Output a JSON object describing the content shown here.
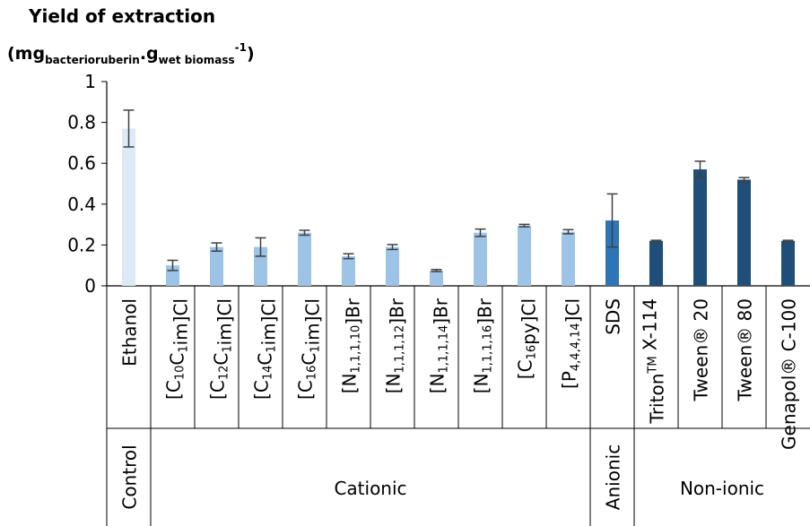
{
  "chart_data": {
    "type": "bar",
    "title": "Yield of extraction",
    "ylabel": "(mg_bacterioruberin.g_wet biomass^-1)",
    "ylabel_parts": {
      "open": "(mg",
      "sub1": "bacterioruberin",
      "dot": ".g",
      "sub2": "wet biomass",
      "sup": "-1",
      "close": ")"
    },
    "ylim": [
      0,
      1
    ],
    "yticks": [
      {
        "value": 0,
        "label": "0"
      },
      {
        "value": 0.2,
        "label": "0.2"
      },
      {
        "value": 0.4,
        "label": "0.4"
      },
      {
        "value": 0.6,
        "label": "0.6"
      },
      {
        "value": 0.8,
        "label": "0.8"
      },
      {
        "value": 1,
        "label": "1"
      }
    ],
    "categories": [
      {
        "label": "Ethanol",
        "main": "Ethanol",
        "value": 0.77,
        "err": 0.09,
        "color": "#dce9f6"
      },
      {
        "label": "[C10C1im]Cl",
        "parts": [
          [
            "[C",
            ""
          ],
          [
            "10",
            "sub"
          ],
          [
            "C",
            ""
          ],
          [
            "1",
            "sub"
          ],
          [
            "im]Cl",
            ""
          ]
        ],
        "value": 0.1,
        "err": 0.025,
        "color": "#9dc3e6"
      },
      {
        "label": "[C12C1im]Cl",
        "parts": [
          [
            "[C",
            ""
          ],
          [
            "12",
            "sub"
          ],
          [
            "C",
            ""
          ],
          [
            "1",
            "sub"
          ],
          [
            "im]Cl",
            ""
          ]
        ],
        "value": 0.19,
        "err": 0.02,
        "color": "#9dc3e6"
      },
      {
        "label": "[C14C1im]Cl",
        "parts": [
          [
            "[C",
            ""
          ],
          [
            "14",
            "sub"
          ],
          [
            "C",
            ""
          ],
          [
            "1",
            "sub"
          ],
          [
            "im]Cl",
            ""
          ]
        ],
        "value": 0.19,
        "err": 0.045,
        "color": "#9dc3e6"
      },
      {
        "label": "[C16C1im]Cl",
        "parts": [
          [
            "[C",
            ""
          ],
          [
            "16",
            "sub"
          ],
          [
            "C",
            ""
          ],
          [
            "1",
            "sub"
          ],
          [
            "im]Cl",
            ""
          ]
        ],
        "value": 0.26,
        "err": 0.012,
        "color": "#9dc3e6"
      },
      {
        "label": "[N1,1,1,10]Br",
        "parts": [
          [
            "[N",
            ""
          ],
          [
            "1,1,1,10",
            "sub"
          ],
          [
            "]Br",
            ""
          ]
        ],
        "value": 0.145,
        "err": 0.012,
        "color": "#9dc3e6"
      },
      {
        "label": "[N1,1,1,12]Br",
        "parts": [
          [
            "[N",
            ""
          ],
          [
            "1,1,1,12",
            "sub"
          ],
          [
            "]Br",
            ""
          ]
        ],
        "value": 0.19,
        "err": 0.012,
        "color": "#9dc3e6"
      },
      {
        "label": "[N1,1,1,14]Br",
        "parts": [
          [
            "[N",
            ""
          ],
          [
            "1,1,1,14",
            "sub"
          ],
          [
            "]Br",
            ""
          ]
        ],
        "value": 0.075,
        "err": 0.005,
        "color": "#9dc3e6"
      },
      {
        "label": "[N1,1,1,16]Br",
        "parts": [
          [
            "[N",
            ""
          ],
          [
            "1,1,1,16",
            "sub"
          ],
          [
            "]Br",
            ""
          ]
        ],
        "value": 0.26,
        "err": 0.018,
        "color": "#9dc3e6"
      },
      {
        "label": "[C16py]Cl",
        "parts": [
          [
            "[C",
            ""
          ],
          [
            "16",
            "sub"
          ],
          [
            "py]Cl",
            ""
          ]
        ],
        "value": 0.295,
        "err": 0.006,
        "color": "#9dc3e6"
      },
      {
        "label": "[P4,4,4,14]Cl",
        "parts": [
          [
            "[P",
            ""
          ],
          [
            "4,4,4,14",
            "sub"
          ],
          [
            "]Cl",
            ""
          ]
        ],
        "value": 0.265,
        "err": 0.01,
        "color": "#9dc3e6"
      },
      {
        "label": "SDS",
        "main": "SDS",
        "value": 0.32,
        "err": 0.13,
        "color": "#2e75b6"
      },
      {
        "label": "TritonTM X-114",
        "parts": [
          [
            "Triton",
            ""
          ],
          [
            "TM",
            "sup"
          ],
          [
            " X-114",
            ""
          ]
        ],
        "value": 0.22,
        "err": 0.003,
        "color": "#1f4e79"
      },
      {
        "label": "Tween® 20",
        "main": "Tween® 20",
        "value": 0.57,
        "err": 0.04,
        "color": "#1f4e79"
      },
      {
        "label": "Tween® 80",
        "main": "Tween® 80",
        "value": 0.52,
        "err": 0.01,
        "color": "#1f4e79"
      },
      {
        "label": "Genapol® C-100",
        "main": "Genapol® C-100",
        "value": 0.22,
        "err": 0.003,
        "color": "#1f4e79"
      }
    ],
    "groups": [
      {
        "label": "Control",
        "from": 0,
        "to": 0,
        "rotated": true
      },
      {
        "label": "Cationic",
        "from": 1,
        "to": 10,
        "rotated": false
      },
      {
        "label": "Anionic",
        "from": 11,
        "to": 11,
        "rotated": true
      },
      {
        "label": "Non-ionic",
        "from": 12,
        "to": 15,
        "rotated": false
      }
    ],
    "grid": false,
    "legend": "none"
  }
}
